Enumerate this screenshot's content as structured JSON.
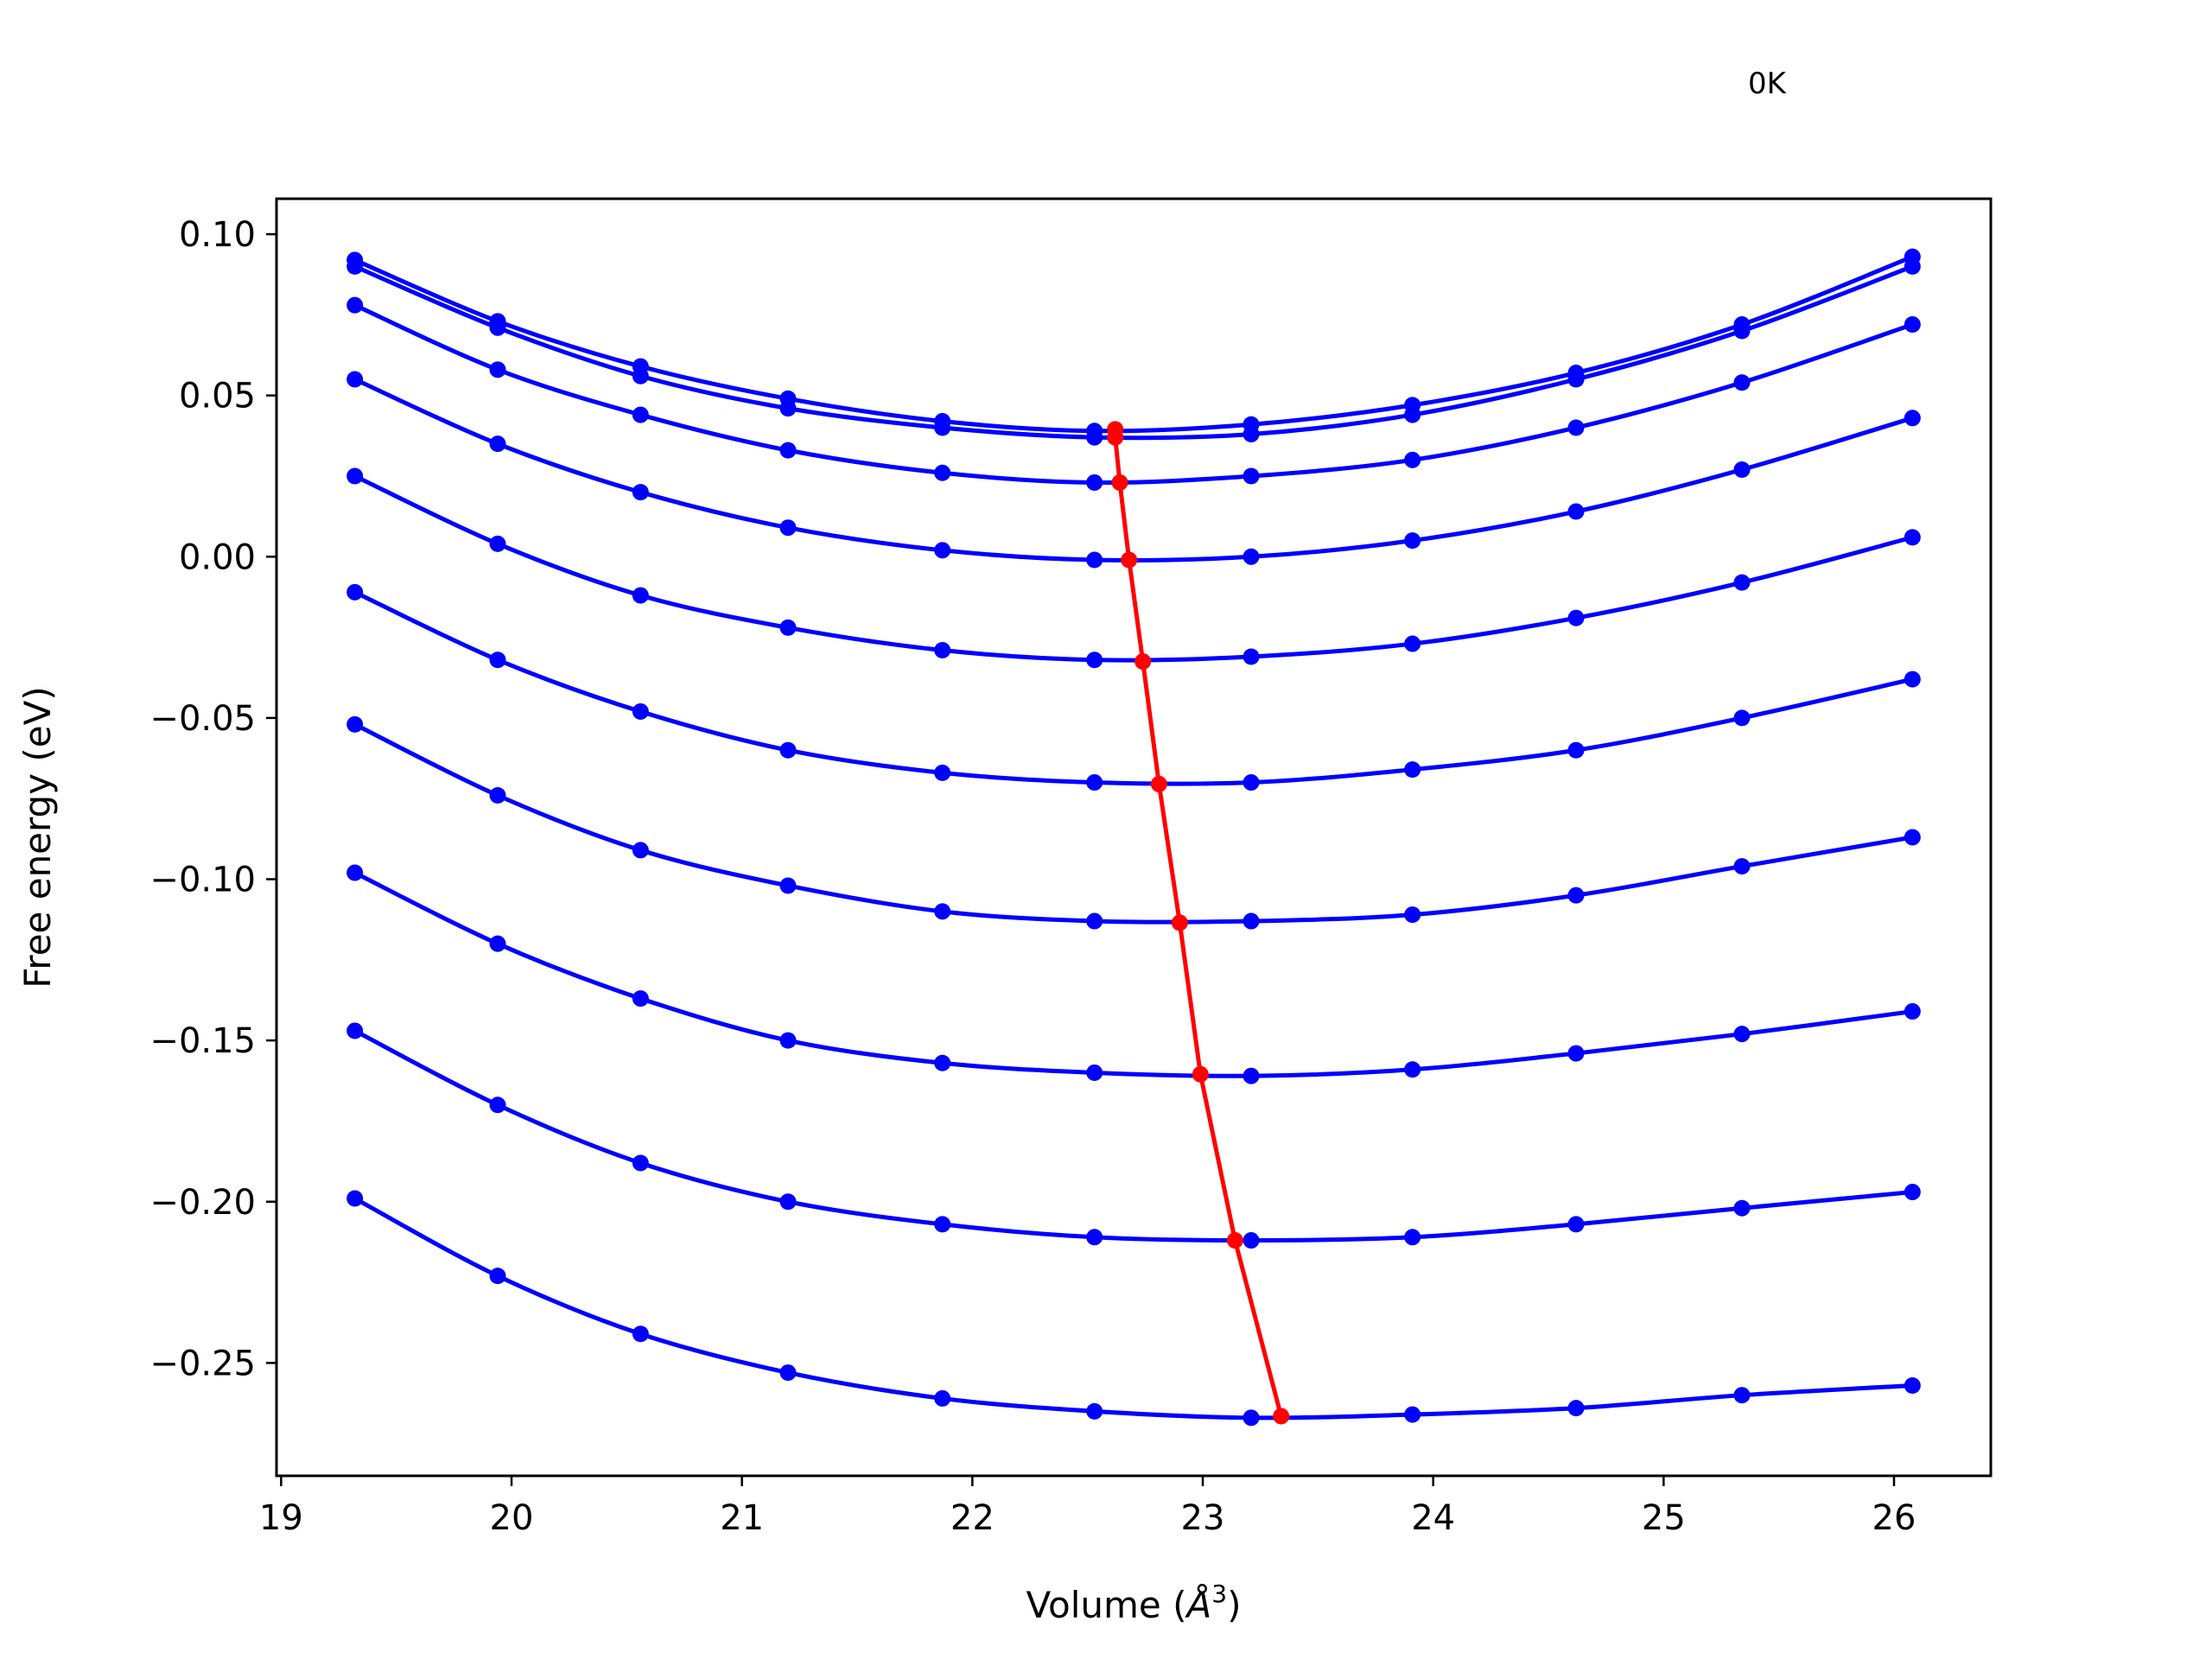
{
  "annotation": "0K",
  "chart_data": {
    "type": "line",
    "title": "",
    "xlabel": "Volume (",
    "xlabel_unit": "Å",
    "xlabel_exp": "3",
    "xlabel_close": ")",
    "ylabel": "Free energy (eV)",
    "xlim": [
      18.98,
      26.42
    ],
    "ylim": [
      -0.285,
      0.111
    ],
    "x_ticks": [
      19,
      20,
      21,
      22,
      23,
      24,
      25,
      26
    ],
    "y_ticks": [
      0.1,
      0.05,
      0.0,
      -0.05,
      -0.1,
      -0.15,
      -0.2,
      -0.25
    ],
    "y_tick_labels": [
      "0.10",
      "0.05",
      "0.00",
      "−0.05",
      "−0.10",
      "−0.15",
      "−0.20",
      "−0.25"
    ],
    "x": [
      19.32,
      19.94,
      20.56,
      21.2,
      21.87,
      22.53,
      23.21,
      23.91,
      24.62,
      25.34,
      26.08
    ],
    "series_color": "#0000ff",
    "min_line_color": "#ff0000",
    "series": [
      {
        "values": [
          0.092,
          0.073,
          0.059,
          0.049,
          0.042,
          0.039,
          0.041,
          0.047,
          0.057,
          0.072,
          0.093
        ],
        "min": [
          22.62,
          0.0395
        ]
      },
      {
        "values": [
          0.09,
          0.071,
          0.056,
          0.046,
          0.04,
          0.037,
          0.038,
          0.044,
          0.055,
          0.07,
          0.09
        ],
        "min": [
          22.62,
          0.037
        ]
      },
      {
        "values": [
          0.078,
          0.058,
          0.044,
          0.033,
          0.026,
          0.023,
          0.025,
          0.03,
          0.04,
          0.054,
          0.072
        ],
        "min": [
          22.64,
          0.023
        ]
      },
      {
        "values": [
          0.055,
          0.035,
          0.02,
          0.009,
          0.002,
          -0.001,
          0.0,
          0.005,
          0.014,
          0.027,
          0.043
        ],
        "min": [
          22.68,
          -0.001
        ]
      },
      {
        "values": [
          0.025,
          0.004,
          -0.012,
          -0.022,
          -0.029,
          -0.032,
          -0.031,
          -0.027,
          -0.019,
          -0.008,
          0.006
        ],
        "min": [
          22.74,
          -0.0325
        ]
      },
      {
        "values": [
          -0.011,
          -0.032,
          -0.048,
          -0.06,
          -0.067,
          -0.07,
          -0.07,
          -0.066,
          -0.06,
          -0.05,
          -0.038
        ],
        "min": [
          22.81,
          -0.0705
        ]
      },
      {
        "values": [
          -0.052,
          -0.074,
          -0.091,
          -0.102,
          -0.11,
          -0.113,
          -0.113,
          -0.111,
          -0.105,
          -0.096,
          -0.087
        ],
        "min": [
          22.9,
          -0.1135
        ]
      },
      {
        "values": [
          -0.098,
          -0.12,
          -0.137,
          -0.15,
          -0.157,
          -0.16,
          -0.161,
          -0.159,
          -0.154,
          -0.148,
          -0.141
        ],
        "min": [
          22.99,
          -0.1605
        ]
      },
      {
        "values": [
          -0.147,
          -0.17,
          -0.188,
          -0.2,
          -0.207,
          -0.211,
          -0.212,
          -0.211,
          -0.207,
          -0.202,
          -0.197
        ],
        "min": [
          23.14,
          -0.212
        ]
      },
      {
        "values": [
          -0.199,
          -0.223,
          -0.241,
          -0.253,
          -0.261,
          -0.265,
          -0.267,
          -0.266,
          -0.264,
          -0.26,
          -0.257
        ],
        "min": [
          23.34,
          -0.2665
        ]
      }
    ]
  }
}
